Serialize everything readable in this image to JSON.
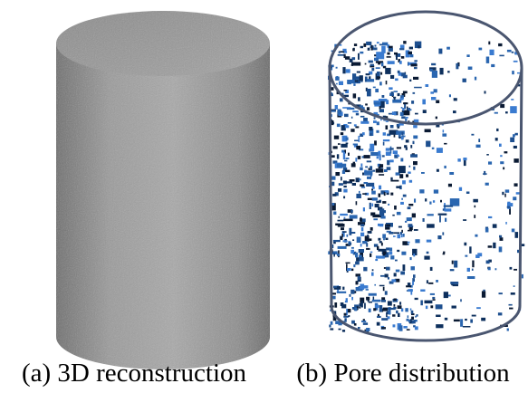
{
  "panels": [
    {
      "caption": "(a) 3D reconstruction"
    },
    {
      "caption": "(b) Pore distribution"
    }
  ]
}
